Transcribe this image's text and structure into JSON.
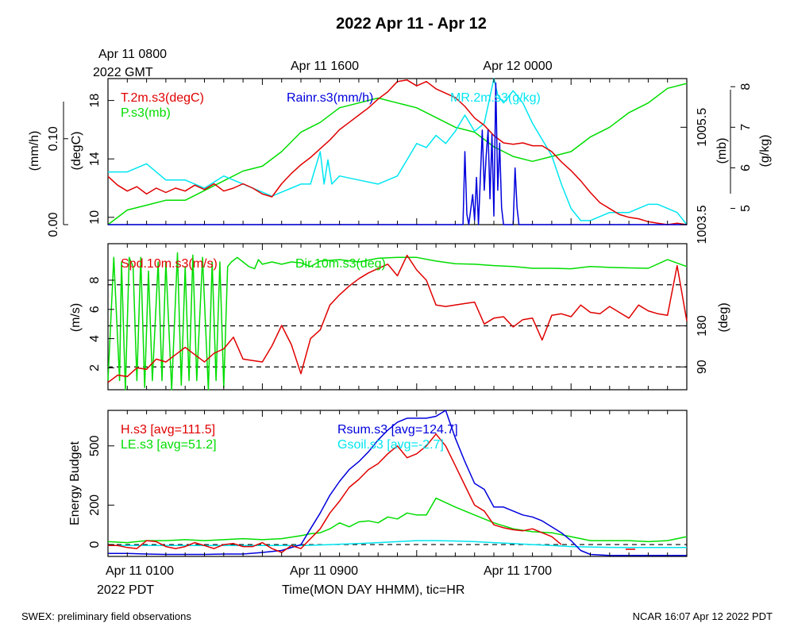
{
  "title": "2022 Apr 11 - Apr 12",
  "top_time_labels": {
    "first_line1": "Apr 11 0800",
    "first_line2": "2022 GMT",
    "mid": "Apr 11 1600",
    "last": "Apr 12 0000"
  },
  "bottom_time_labels": {
    "first": "Apr 11 0100",
    "second_line": "2022 PDT",
    "mid": "Apr 11 0900",
    "last": "Apr 11 1700"
  },
  "xaxis_title": "Time(MON DAY HHMM), tic=HR",
  "footer_left": "SWEX: preliminary field observations",
  "footer_right": "NCAR 16:07 Apr 12 2022 PDT",
  "colors": {
    "red": "#e00000",
    "green": "#00dd00",
    "blue": "#0000dd",
    "cyan": "#00e6f0",
    "axis": "#000000"
  },
  "chart_data": [
    {
      "type": "line",
      "panel": "meteorology",
      "x_unit": "hours since Apr 11 0100 PDT",
      "xlim": [
        0,
        30
      ],
      "series": [
        {
          "name": "T.2m.s3(degC)",
          "color": "red",
          "axis": "degC",
          "x": [
            0,
            0.5,
            1,
            1.5,
            2,
            2.5,
            3,
            3.5,
            4,
            4.5,
            5,
            5.5,
            6,
            6.5,
            7,
            7.5,
            8,
            8.5,
            9,
            9.5,
            10,
            10.5,
            11,
            11.5,
            12,
            12.5,
            13,
            13.5,
            14,
            14.5,
            15,
            15.5,
            16,
            16.5,
            17,
            17.5,
            18,
            18.5,
            19,
            19.5,
            20,
            20.5,
            21,
            21.5,
            22,
            22.5,
            23,
            23.5,
            24,
            24.5,
            25,
            25.5,
            26,
            26.5,
            27,
            27.5,
            28,
            28.5,
            29,
            29.5,
            30
          ],
          "values": [
            12.8,
            12.2,
            11.8,
            12.1,
            11.6,
            12.0,
            11.7,
            12.0,
            11.8,
            12.2,
            11.9,
            12.3,
            11.8,
            12.0,
            12.3,
            12.0,
            11.6,
            11.4,
            12.3,
            13.0,
            13.6,
            14.1,
            14.7,
            15.3,
            16.0,
            16.5,
            17.0,
            17.5,
            18.1,
            18.6,
            19.3,
            19.4,
            19.0,
            19.3,
            18.8,
            18.5,
            18.2,
            17.6,
            16.8,
            16.3,
            15.6,
            15.1,
            15.0,
            15.1,
            14.9,
            14.9,
            14.5,
            13.8,
            13.2,
            12.5,
            11.7,
            11.0,
            10.6,
            10.2,
            10.0,
            9.9,
            9.7,
            9.6,
            9.5,
            9.6,
            9.5
          ]
        },
        {
          "name": "Rainr.s3(mm/h)",
          "color": "blue",
          "axis": "mm/h",
          "x": [
            0,
            18.4,
            18.5,
            18.6,
            18.7,
            18.9,
            19.0,
            19.1,
            19.2,
            19.4,
            19.5,
            19.6,
            19.7,
            19.8,
            19.9,
            20.0,
            20.1,
            20.2,
            20.3,
            20.4,
            20.5,
            20.6,
            20.7,
            20.8,
            20.9,
            21.0,
            21.1,
            21.2,
            21.3,
            30
          ],
          "values": [
            0,
            0,
            0.085,
            0.012,
            0.0,
            0.035,
            0.005,
            0.055,
            0.0,
            0.11,
            0.04,
            0.08,
            0.11,
            0.03,
            0.105,
            0.01,
            0.165,
            0.04,
            0.095,
            0.02,
            0.0,
            0.0,
            0.0,
            0.0,
            0.0,
            0.0,
            0.066,
            0.02,
            0.0,
            0.0
          ]
        },
        {
          "name": "MR.2m.s3(g/kg)",
          "color": "cyan",
          "axis": "g/kg",
          "x": [
            0,
            1,
            2,
            3,
            4,
            5,
            6,
            7,
            8,
            8.5,
            9,
            9.5,
            10,
            10.5,
            11,
            11.2,
            11.4,
            11.6,
            12,
            13,
            14,
            15,
            16,
            16.5,
            17,
            17.5,
            18,
            18.5,
            19,
            19.5,
            20,
            20.2,
            20.5,
            21,
            21.5,
            22,
            22.5,
            23,
            23.5,
            24,
            24.5,
            25,
            25.5,
            26,
            27,
            28,
            28.5,
            29,
            29.5,
            30
          ],
          "values": [
            5.9,
            5.9,
            6.1,
            5.7,
            5.7,
            5.5,
            5.8,
            5.6,
            5.4,
            5.3,
            5.4,
            5.5,
            5.6,
            5.6,
            6.4,
            5.6,
            6.2,
            5.6,
            5.8,
            5.7,
            5.6,
            5.8,
            6.6,
            6.5,
            6.8,
            6.6,
            6.9,
            7.3,
            6.9,
            7.1,
            8.2,
            7.8,
            7.6,
            7.9,
            7.6,
            7.1,
            6.7,
            6.3,
            5.6,
            5.0,
            4.7,
            4.7,
            4.8,
            4.9,
            4.9,
            5.1,
            5.1,
            5.0,
            4.9,
            4.6
          ]
        },
        {
          "name": "P.s3(mb)",
          "color": "green",
          "axis": "mb",
          "x": [
            0,
            1,
            2,
            3,
            4,
            5,
            6,
            7,
            8,
            9,
            10,
            11,
            12,
            13,
            14,
            15,
            16,
            17,
            18,
            19,
            20,
            21,
            22,
            23,
            24,
            25,
            26,
            27,
            28,
            29,
            30
          ],
          "values": [
            1003.5,
            1003.8,
            1003.9,
            1004.0,
            1004.0,
            1004.2,
            1004.4,
            1004.6,
            1004.7,
            1005.0,
            1005.4,
            1005.6,
            1005.9,
            1006.0,
            1006.1,
            1006.0,
            1005.9,
            1005.7,
            1005.5,
            1005.4,
            1005.1,
            1004.9,
            1004.8,
            1004.9,
            1005.0,
            1005.3,
            1005.5,
            1005.8,
            1006.0,
            1006.3,
            1006.4
          ]
        }
      ],
      "axes": {
        "left_mmh": {
          "label": "(mm/h)",
          "ticks": [
            "0.00",
            "0.10"
          ],
          "lim": [
            0,
            0.17
          ]
        },
        "left_degC": {
          "label": "(degC)",
          "ticks": [
            "10",
            "14",
            "18"
          ],
          "lim": [
            9.5,
            19.5
          ]
        },
        "right_mb": {
          "label": "(mb)",
          "ticks": [
            "1003.5",
            "1005.5"
          ],
          "lim": [
            1003.5,
            1006.5
          ]
        },
        "right_gkg": {
          "label": "(g/kg)",
          "ticks": [
            "5",
            "6",
            "7",
            "8"
          ],
          "lim": [
            4.6,
            8.2
          ]
        }
      }
    },
    {
      "type": "line",
      "panel": "wind",
      "x_unit": "hours since Apr 11 0100 PDT",
      "xlim": [
        0,
        30
      ],
      "series": [
        {
          "name": "Spd.10m.s3(m/s)",
          "color": "red",
          "axis": "m/s",
          "x": [
            0,
            0.5,
            1,
            1.5,
            2,
            2.5,
            3,
            3.5,
            4,
            4.5,
            5,
            5.5,
            6,
            6.5,
            7,
            7.5,
            8,
            8.5,
            9,
            9.5,
            10,
            10.5,
            11,
            11.5,
            12,
            12.5,
            13,
            13.5,
            14,
            14.5,
            15,
            15.5,
            16,
            16.5,
            17,
            17.5,
            18,
            18.5,
            19,
            19.5,
            20,
            20.5,
            21,
            21.5,
            22,
            22.5,
            23,
            23.5,
            24,
            24.5,
            25,
            25.5,
            26,
            26.5,
            27,
            27.5,
            28,
            28.5,
            29,
            29.5,
            30
          ],
          "values": [
            1.0,
            1.5,
            1.4,
            2.0,
            1.9,
            2.6,
            2.4,
            2.9,
            3.4,
            2.9,
            2.4,
            3.0,
            3.3,
            4.1,
            2.6,
            2.5,
            2.4,
            3.5,
            4.9,
            3.6,
            1.6,
            4.0,
            4.6,
            6.3,
            7.0,
            7.6,
            8.1,
            8.5,
            8.8,
            9.1,
            8.3,
            9.7,
            8.7,
            8.0,
            6.3,
            6.2,
            6.3,
            6.4,
            6.5,
            5.0,
            5.4,
            5.5,
            4.8,
            5.3,
            5.4,
            3.9,
            5.6,
            5.7,
            5.5,
            6.3,
            5.8,
            5.7,
            6.2,
            5.8,
            5.4,
            6.3,
            5.9,
            5.7,
            5.6,
            9.0,
            5.2
          ]
        },
        {
          "name": "Dir.10m.s3(deg)",
          "color": "green",
          "axis": "deg",
          "x": [
            0,
            0.3,
            0.6,
            0.7,
            0.9,
            1.1,
            1.3,
            1.5,
            1.7,
            1.9,
            2.1,
            2.3,
            2.6,
            2.8,
            3.0,
            3.3,
            3.6,
            3.8,
            4.0,
            4.2,
            4.4,
            4.6,
            4.9,
            5.2,
            5.4,
            5.6,
            5.8,
            6.0,
            6.2,
            6.4,
            6.7,
            7.0,
            7.3,
            7.6,
            7.8,
            8.0,
            8.5,
            9,
            9.5,
            10,
            10.5,
            11,
            12,
            13,
            14,
            15,
            16,
            17,
            18,
            19,
            20,
            21,
            22,
            23,
            24,
            25,
            26,
            27,
            28,
            29,
            30
          ],
          "values": [
            60,
            330,
            60,
            320,
            40,
            330,
            310,
            60,
            330,
            45,
            300,
            60,
            320,
            60,
            320,
            40,
            340,
            50,
            310,
            60,
            335,
            60,
            330,
            40,
            320,
            60,
            320,
            45,
            310,
            320,
            330,
            320,
            310,
            305,
            325,
            315,
            320,
            315,
            320,
            318,
            310,
            322,
            325,
            320,
            328,
            330,
            330,
            322,
            316,
            315,
            312,
            310,
            306,
            306,
            305,
            310,
            308,
            307,
            306,
            325,
            310
          ]
        }
      ],
      "axes": {
        "left_ms": {
          "label": "(m/s)",
          "ticks": [
            "2",
            "4",
            "6",
            "8"
          ],
          "lim": [
            0.5,
            10.5
          ]
        },
        "right_deg": {
          "label": "(deg)",
          "ticks": [
            "90",
            "180"
          ],
          "lim": [
            40,
            360
          ]
        }
      },
      "reference_lines_deg": [
        90,
        180,
        270
      ]
    },
    {
      "type": "line",
      "panel": "energy",
      "x_unit": "hours since Apr 11 0100 PDT",
      "xlim": [
        0,
        30
      ],
      "ylabel": "Energy Budget",
      "ylim": [
        -60,
        680
      ],
      "yticks": [
        "0",
        "200",
        "500"
      ],
      "ytick_values": [
        0,
        200,
        500
      ],
      "series": [
        {
          "name": "H.s3",
          "avg_label": "[avg=111.5]",
          "color": "red",
          "x": [
            0,
            0.5,
            1,
            1.5,
            2,
            2.5,
            3,
            3.5,
            4,
            4.5,
            5,
            5.5,
            6,
            6.5,
            7,
            7.5,
            8,
            8.5,
            9,
            9.5,
            10,
            10.5,
            11,
            11.5,
            12,
            12.5,
            13,
            13.5,
            14,
            14.5,
            15,
            15.5,
            16,
            16.5,
            17,
            17.5,
            18,
            18.5,
            19,
            19.5,
            20,
            20.5,
            21,
            21.5,
            22,
            22.5,
            23,
            23.5
          ],
          "values": [
            -5,
            -5,
            -15,
            -20,
            20,
            15,
            -10,
            -20,
            -10,
            10,
            -5,
            -20,
            0,
            5,
            -10,
            -10,
            10,
            -20,
            -40,
            -5,
            -20,
            30,
            80,
            160,
            220,
            290,
            330,
            380,
            410,
            460,
            500,
            440,
            460,
            500,
            560,
            500,
            400,
            300,
            200,
            170,
            100,
            85,
            75,
            70,
            80,
            60,
            40,
            0
          ]
        },
        {
          "name": "LE.s3",
          "avg_label": "[avg=51.2]",
          "color": "green",
          "x": [
            0,
            1,
            2,
            3,
            4,
            5,
            6,
            7,
            8,
            9,
            10,
            10.5,
            11,
            11.5,
            12,
            12.5,
            13,
            13.5,
            14,
            14.5,
            15,
            15.5,
            16,
            16.5,
            17,
            18,
            19,
            20,
            21,
            22,
            23,
            24,
            25,
            26,
            27,
            28,
            29,
            30
          ],
          "values": [
            15,
            10,
            20,
            20,
            25,
            20,
            25,
            30,
            25,
            30,
            45,
            55,
            60,
            80,
            110,
            90,
            115,
            120,
            110,
            140,
            130,
            160,
            150,
            150,
            235,
            190,
            150,
            110,
            80,
            65,
            60,
            40,
            20,
            20,
            20,
            15,
            20,
            40
          ]
        },
        {
          "name": "Rsum.s3",
          "avg_label": "[avg=124.7]",
          "color": "blue",
          "x": [
            0,
            1,
            2,
            3,
            4,
            5,
            6,
            7,
            8,
            9,
            10,
            10.5,
            11,
            11.5,
            12,
            12.5,
            13,
            13.5,
            14,
            14.5,
            15,
            15.5,
            16,
            16.5,
            17,
            17.5,
            18,
            18.5,
            19,
            19.5,
            20,
            20.5,
            21,
            21.5,
            22,
            22.5,
            23,
            23.5,
            24,
            24.5,
            25,
            26,
            27,
            28,
            29,
            30
          ],
          "values": [
            -45,
            -45,
            -48,
            -50,
            -50,
            -50,
            -48,
            -48,
            -40,
            -30,
            0,
            80,
            160,
            250,
            320,
            380,
            420,
            470,
            530,
            580,
            620,
            640,
            640,
            640,
            650,
            680,
            540,
            420,
            310,
            280,
            190,
            190,
            170,
            150,
            140,
            120,
            90,
            60,
            20,
            -30,
            -50,
            -55,
            -55,
            -55,
            -55,
            -55
          ]
        },
        {
          "name": "Gsoil.s3",
          "avg_label": "[avg=-2.7]",
          "color": "cyan",
          "x": [
            0,
            2,
            4,
            6,
            8,
            10,
            11,
            12,
            13,
            14,
            15,
            16,
            17,
            18,
            19,
            20,
            21,
            22,
            23,
            24,
            25,
            26,
            27,
            28,
            29,
            30
          ],
          "values": [
            -5,
            -5,
            -5,
            -5,
            -5,
            -5,
            -2,
            2,
            5,
            10,
            15,
            20,
            20,
            18,
            15,
            10,
            5,
            0,
            -5,
            -10,
            -12,
            -14,
            -15,
            -15,
            -15,
            -15
          ]
        }
      ]
    }
  ]
}
